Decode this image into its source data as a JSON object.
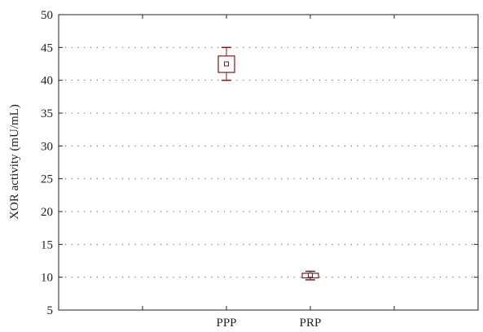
{
  "chart_data": {
    "type": "box",
    "title": "",
    "xlabel": "",
    "ylabel": "XOR activity (mU/mL)",
    "ylim": [
      5,
      50
    ],
    "yticks": [
      5,
      10,
      15,
      20,
      25,
      30,
      35,
      40,
      45,
      50
    ],
    "grid": "dotted-horizontal",
    "categories": [
      "PPP",
      "PRP"
    ],
    "boxes": [
      {
        "category": "PPP",
        "whisker_low": 40.0,
        "q1": 41.2,
        "median": 42.5,
        "q3": 43.7,
        "whisker_high": 45.0
      },
      {
        "category": "PRP",
        "whisker_low": 9.6,
        "q1": 9.9,
        "median": 10.3,
        "q3": 10.6,
        "whisker_high": 10.9
      }
    ],
    "colors": {
      "box": "#7a1a1a",
      "grid": "#555555",
      "axis": "#222222"
    }
  }
}
